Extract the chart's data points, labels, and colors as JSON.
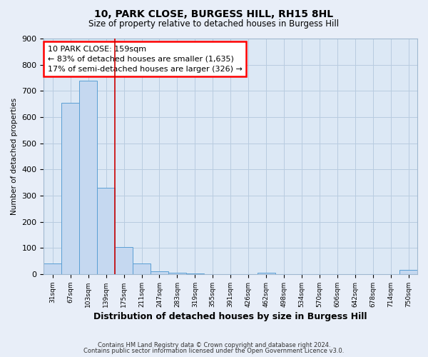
{
  "title1": "10, PARK CLOSE, BURGESS HILL, RH15 8HL",
  "title2": "Size of property relative to detached houses in Burgess Hill",
  "xlabel": "Distribution of detached houses by size in Burgess Hill",
  "ylabel": "Number of detached properties",
  "bin_labels": [
    "31sqm",
    "67sqm",
    "103sqm",
    "139sqm",
    "175sqm",
    "211sqm",
    "247sqm",
    "283sqm",
    "319sqm",
    "355sqm",
    "391sqm",
    "426sqm",
    "462sqm",
    "498sqm",
    "534sqm",
    "570sqm",
    "606sqm",
    "642sqm",
    "678sqm",
    "714sqm",
    "750sqm"
  ],
  "bar_heights": [
    40,
    655,
    740,
    330,
    103,
    40,
    12,
    5,
    2,
    0,
    0,
    0,
    5,
    0,
    0,
    0,
    0,
    0,
    0,
    0,
    15
  ],
  "bar_color": "#c5d8f0",
  "bar_edge_color": "#5a9fd4",
  "red_line_x": 3.5,
  "annotation_text": "10 PARK CLOSE: 159sqm\n← 83% of detached houses are smaller (1,635)\n17% of semi-detached houses are larger (326) →",
  "ylim": [
    0,
    900
  ],
  "yticks": [
    0,
    100,
    200,
    300,
    400,
    500,
    600,
    700,
    800,
    900
  ],
  "footer1": "Contains HM Land Registry data © Crown copyright and database right 2024.",
  "footer2": "Contains public sector information licensed under the Open Government Licence v3.0.",
  "bg_color": "#e8eef8",
  "plot_bg_color": "#dce8f5",
  "grid_color": "#b8cce0"
}
